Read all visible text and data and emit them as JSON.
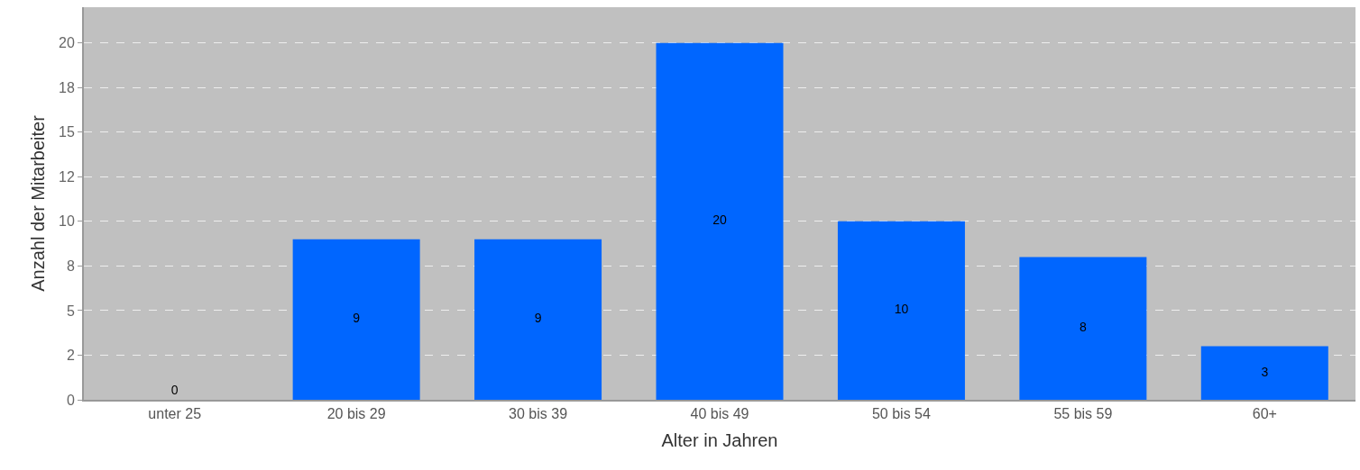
{
  "chart_data": {
    "type": "bar",
    "xlabel": "Alter in Jahren",
    "ylabel": "Anzahl der Mitarbeiter",
    "categories": [
      "unter 25",
      "20 bis 29",
      "30 bis 39",
      "40 bis 49",
      "50 bis 54",
      "55 bis 59",
      "60+"
    ],
    "values": [
      0,
      9,
      9,
      20,
      10,
      8,
      3
    ],
    "color": "#0066ff",
    "ylim": [
      0,
      22
    ],
    "yticks": [
      {
        "value": 0,
        "label": "0"
      },
      {
        "value": 2.5,
        "label": "2"
      },
      {
        "value": 5,
        "label": "5"
      },
      {
        "value": 7.5,
        "label": "8"
      },
      {
        "value": 10,
        "label": "10"
      },
      {
        "value": 12.5,
        "label": "12"
      },
      {
        "value": 15,
        "label": "15"
      },
      {
        "value": 17.5,
        "label": "18"
      },
      {
        "value": 20,
        "label": "20"
      }
    ],
    "grid": "y",
    "data_labels": true
  }
}
